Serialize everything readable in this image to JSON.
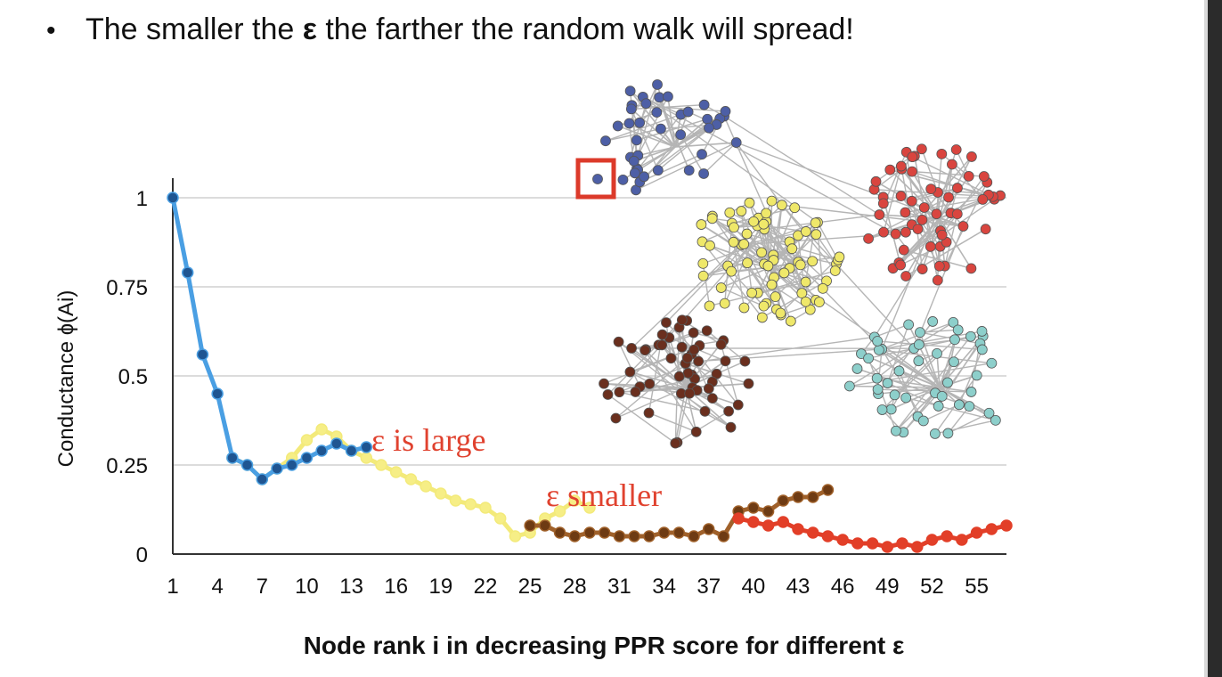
{
  "slide": {
    "bullet": "•",
    "headline_before": "The smaller the ",
    "headline_symbol": "ε",
    "headline_after": " the farther the random walk will spread!"
  },
  "chart_data": {
    "type": "line",
    "ylabel": "Conductance ɸ(Ai)",
    "xlabel": "Node rank i in decreasing PPR score for different ε",
    "xlim": [
      1,
      57
    ],
    "ylim": [
      0,
      1
    ],
    "x_ticks": [
      1,
      4,
      7,
      10,
      13,
      16,
      19,
      22,
      25,
      28,
      31,
      34,
      37,
      40,
      43,
      46,
      49,
      52,
      55
    ],
    "y_ticks": [
      {
        "value": 0,
        "label": "0"
      },
      {
        "value": 0.25,
        "label": "0.25"
      },
      {
        "value": 0.5,
        "label": "0.5"
      },
      {
        "value": 0.75,
        "label": "0.75"
      },
      {
        "value": 1,
        "label": "1"
      }
    ],
    "grid": true,
    "series": [
      {
        "line_color": "#f3ea7a",
        "marker_color": "#f6ee86",
        "points": [
          [
            5,
            0.27
          ],
          [
            6,
            0.25
          ],
          [
            7,
            0.21
          ],
          [
            8,
            0.24
          ],
          [
            9,
            0.27
          ],
          [
            10,
            0.32
          ],
          [
            11,
            0.35
          ],
          [
            12,
            0.33
          ],
          [
            13,
            0.29
          ],
          [
            14,
            0.27
          ],
          [
            15,
            0.25
          ],
          [
            16,
            0.23
          ],
          [
            17,
            0.21
          ],
          [
            18,
            0.19
          ],
          [
            19,
            0.17
          ],
          [
            20,
            0.15
          ],
          [
            21,
            0.14
          ],
          [
            22,
            0.13
          ],
          [
            23,
            0.1
          ],
          [
            24,
            0.05
          ],
          [
            25,
            0.06
          ],
          [
            26,
            0.1
          ],
          [
            27,
            0.12
          ],
          [
            28,
            0.15
          ],
          [
            29,
            0.13
          ]
        ]
      },
      {
        "line_color": "#4a9fe3",
        "marker_color": "#1f5591",
        "points": [
          [
            1,
            1.0
          ],
          [
            2,
            0.79
          ],
          [
            3,
            0.56
          ],
          [
            4,
            0.45
          ],
          [
            5,
            0.27
          ],
          [
            6,
            0.25
          ],
          [
            7,
            0.21
          ],
          [
            8,
            0.24
          ],
          [
            9,
            0.25
          ],
          [
            10,
            0.27
          ],
          [
            11,
            0.29
          ],
          [
            12,
            0.31
          ],
          [
            13,
            0.29
          ],
          [
            14,
            0.3
          ]
        ]
      },
      {
        "line_color": "#a0612a",
        "marker_color": "#6e3b13",
        "points": [
          [
            25,
            0.08
          ],
          [
            26,
            0.08
          ],
          [
            27,
            0.06
          ],
          [
            28,
            0.05
          ],
          [
            29,
            0.06
          ],
          [
            30,
            0.06
          ],
          [
            31,
            0.05
          ],
          [
            32,
            0.05
          ],
          [
            33,
            0.05
          ],
          [
            34,
            0.06
          ],
          [
            35,
            0.06
          ],
          [
            36,
            0.05
          ],
          [
            37,
            0.07
          ],
          [
            38,
            0.05
          ],
          [
            39,
            0.12
          ],
          [
            40,
            0.13
          ],
          [
            41,
            0.12
          ],
          [
            42,
            0.15
          ],
          [
            43,
            0.16
          ],
          [
            44,
            0.16
          ],
          [
            45,
            0.18
          ]
        ]
      },
      {
        "line_color": "#e23f28",
        "marker_color": "#e23f28",
        "points": [
          [
            39,
            0.1
          ],
          [
            40,
            0.09
          ],
          [
            41,
            0.08
          ],
          [
            42,
            0.09
          ],
          [
            43,
            0.07
          ],
          [
            44,
            0.06
          ],
          [
            45,
            0.05
          ],
          [
            46,
            0.04
          ],
          [
            47,
            0.03
          ],
          [
            48,
            0.03
          ],
          [
            49,
            0.02
          ],
          [
            50,
            0.03
          ],
          [
            51,
            0.02
          ],
          [
            52,
            0.04
          ],
          [
            53,
            0.05
          ],
          [
            54,
            0.04
          ],
          [
            55,
            0.06
          ],
          [
            56,
            0.07
          ],
          [
            57,
            0.08
          ]
        ]
      }
    ],
    "annotations": [
      {
        "text": "ε is large",
        "color": "#e0422f"
      },
      {
        "text": "ε smaller",
        "color": "#e0422f"
      }
    ],
    "inset_graph": {
      "type": "network",
      "clusters": [
        {
          "color": "#4d5fa6",
          "nodes": 40
        },
        {
          "color": "#efe86a",
          "nodes": 75
        },
        {
          "color": "#d9453f",
          "nodes": 60
        },
        {
          "color": "#6a2f1e",
          "nodes": 55
        },
        {
          "color": "#8dcfcb",
          "nodes": 50
        }
      ],
      "highlight_color": "#dc3a2a",
      "edge_color": "#b5b5b5"
    }
  }
}
